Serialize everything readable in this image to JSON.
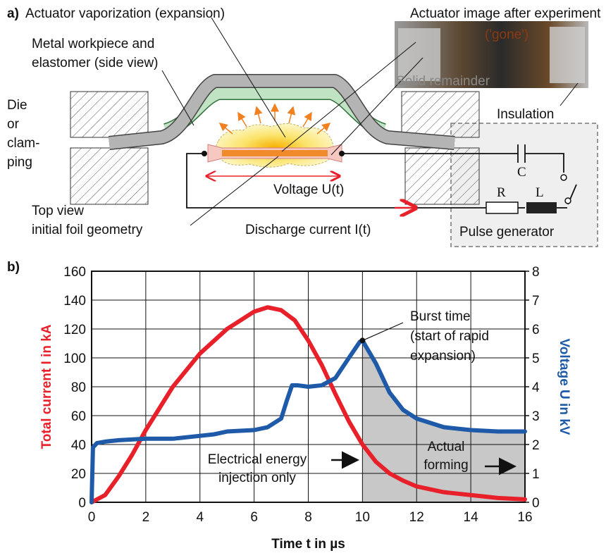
{
  "panel_a": {
    "label": "a)",
    "vaporization": "Actuator vaporization (expansion)",
    "image_title": "Actuator image after experiment",
    "gone": "('gone')",
    "workpiece": [
      "Metal workpiece and",
      "elastomer (side view)"
    ],
    "solid_remainder": "Solid remainder",
    "die": [
      "Die",
      "or",
      "clam-",
      "ping"
    ],
    "insulation": "Insulation",
    "voltage": "Voltage U(t)",
    "top_view": [
      "Top view",
      "initial foil geometry"
    ],
    "current": "Discharge current I(t)",
    "capacitor": "C",
    "resistor": "R",
    "inductor": "L",
    "pulse_generator": "Pulse generator"
  },
  "chart_data": {
    "type": "line",
    "panel_label": "b)",
    "xlabel": "Time t in µs",
    "ylabel": "Total current I in kA",
    "y2label": "Voltage U in kV",
    "xlim": [
      0,
      16
    ],
    "xticks": [
      0,
      2,
      4,
      6,
      8,
      10,
      12,
      14,
      16
    ],
    "ylim": [
      0,
      160
    ],
    "yticks": [
      0,
      20,
      40,
      60,
      80,
      100,
      120,
      140,
      160
    ],
    "y2lim": [
      0,
      8
    ],
    "y2ticks": [
      0,
      1,
      2,
      3,
      4,
      5,
      6,
      7,
      8
    ],
    "grid": true,
    "series": [
      {
        "name": "Total current I in kA",
        "color": "#e8202a",
        "x": [
          0,
          0.5,
          1,
          1.5,
          2,
          3,
          4,
          5,
          6,
          6.5,
          7,
          7.5,
          8,
          8.5,
          9,
          9.5,
          10,
          10.5,
          11,
          11.5,
          12,
          13,
          14,
          15,
          16
        ],
        "values": [
          0,
          5,
          18,
          33,
          50,
          80,
          103,
          120,
          132,
          135,
          133,
          126,
          112,
          95,
          75,
          56,
          40,
          28,
          20,
          15,
          11,
          7,
          5,
          3,
          2
        ]
      },
      {
        "name": "Voltage U in kV",
        "color": "#1e5aa8",
        "axis": "y2",
        "x": [
          0,
          0.05,
          0.2,
          0.5,
          1,
          2,
          3,
          4,
          4.5,
          5,
          6,
          6.5,
          7,
          7.2,
          7.4,
          7.6,
          8,
          8.5,
          9,
          9.5,
          9.9,
          10,
          10.5,
          11,
          11.5,
          12,
          13,
          14,
          15,
          16
        ],
        "values": [
          0,
          1.9,
          2.05,
          2.1,
          2.15,
          2.2,
          2.2,
          2.3,
          2.35,
          2.45,
          2.5,
          2.6,
          2.9,
          3.5,
          4.05,
          4.05,
          4.0,
          4.05,
          4.3,
          5.0,
          5.55,
          5.6,
          4.8,
          3.8,
          3.2,
          2.9,
          2.6,
          2.5,
          2.45,
          2.45
        ]
      }
    ],
    "shade": {
      "from": 10,
      "to": 16
    },
    "annotations": [
      {
        "lines": [
          "Burst time",
          "(start of rapid",
          "expansion)"
        ],
        "x": 10,
        "y": 5.6
      },
      {
        "lines": [
          "Electrical energy",
          "injection only"
        ]
      },
      {
        "lines": [
          "Actual",
          "forming"
        ]
      }
    ]
  }
}
